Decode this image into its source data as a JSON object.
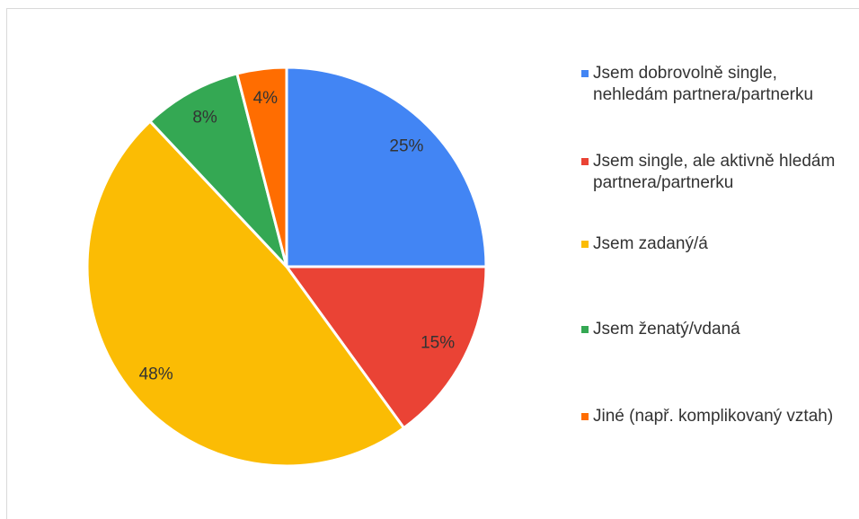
{
  "chart_data": {
    "type": "pie",
    "categories": [
      "Jsem dobrovolně single, nehledám partnera/partnerku",
      "Jsem single, ale aktivně hledám partnera/partnerku",
      "Jsem zadaný/á",
      "Jsem ženatý/vdaná",
      "Jiné (např. komplikovaný vztah)"
    ],
    "values": [
      25,
      15,
      48,
      8,
      4
    ],
    "value_labels": [
      "25%",
      "15%",
      "48%",
      "8%",
      "4%"
    ],
    "colors": [
      "#4285f4",
      "#ea4335",
      "#fbbc04",
      "#34a853",
      "#ff6d01"
    ],
    "legend": "right"
  }
}
